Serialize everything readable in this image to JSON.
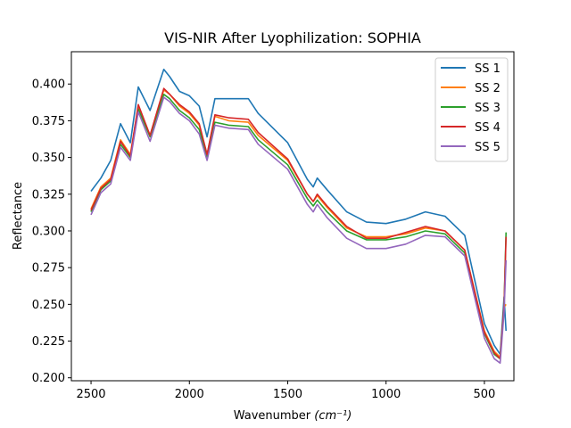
{
  "chart_data": {
    "type": "line",
    "title": "VIS-NIR After Lyophilization: SOPHIA",
    "xlabel": "Wavenumber",
    "xlabel_unit": "(cm⁻¹)",
    "ylabel": "Reflectance",
    "xlim": [
      2600,
      350
    ],
    "ylim": [
      0.198,
      0.422
    ],
    "x_ticks": [
      2500,
      2000,
      1500,
      1000,
      500
    ],
    "y_ticks": [
      0.2,
      0.225,
      0.25,
      0.275,
      0.3,
      0.325,
      0.35,
      0.375,
      0.4
    ],
    "y_tick_labels": [
      "0.200",
      "0.225",
      "0.250",
      "0.275",
      "0.300",
      "0.325",
      "0.350",
      "0.375",
      "0.400"
    ],
    "legend_position": "top-right",
    "x": [
      2500,
      2450,
      2400,
      2350,
      2300,
      2260,
      2200,
      2130,
      2100,
      2050,
      2000,
      1950,
      1910,
      1870,
      1800,
      1700,
      1650,
      1500,
      1400,
      1370,
      1350,
      1300,
      1200,
      1100,
      1000,
      900,
      800,
      700,
      600,
      500,
      450,
      420,
      400,
      390
    ],
    "series": [
      {
        "name": "SS 1",
        "color": "#1f77b4",
        "values": [
          0.327,
          0.336,
          0.348,
          0.373,
          0.36,
          0.398,
          0.382,
          0.41,
          0.405,
          0.395,
          0.392,
          0.385,
          0.364,
          0.39,
          0.39,
          0.39,
          0.38,
          0.36,
          0.335,
          0.33,
          0.336,
          0.328,
          0.313,
          0.306,
          0.305,
          0.308,
          0.313,
          0.31,
          0.297,
          0.237,
          0.222,
          0.216,
          0.255,
          0.232
        ]
      },
      {
        "name": "SS 2",
        "color": "#ff7f0e",
        "values": [
          0.315,
          0.33,
          0.336,
          0.362,
          0.352,
          0.385,
          0.365,
          0.396,
          0.393,
          0.385,
          0.38,
          0.372,
          0.352,
          0.378,
          0.375,
          0.374,
          0.365,
          0.348,
          0.325,
          0.32,
          0.324,
          0.316,
          0.302,
          0.296,
          0.296,
          0.298,
          0.302,
          0.3,
          0.287,
          0.232,
          0.218,
          0.214,
          0.248,
          0.25
        ]
      },
      {
        "name": "SS 3",
        "color": "#2ca02c",
        "values": [
          0.313,
          0.328,
          0.334,
          0.359,
          0.35,
          0.383,
          0.364,
          0.393,
          0.39,
          0.382,
          0.377,
          0.369,
          0.35,
          0.374,
          0.372,
          0.371,
          0.362,
          0.345,
          0.322,
          0.317,
          0.321,
          0.313,
          0.3,
          0.294,
          0.294,
          0.296,
          0.3,
          0.298,
          0.285,
          0.23,
          0.216,
          0.213,
          0.25,
          0.299
        ]
      },
      {
        "name": "SS 4",
        "color": "#d62728",
        "values": [
          0.314,
          0.329,
          0.335,
          0.361,
          0.351,
          0.386,
          0.365,
          0.397,
          0.393,
          0.386,
          0.381,
          0.373,
          0.352,
          0.379,
          0.377,
          0.376,
          0.367,
          0.349,
          0.325,
          0.32,
          0.325,
          0.317,
          0.303,
          0.295,
          0.295,
          0.299,
          0.303,
          0.3,
          0.287,
          0.231,
          0.217,
          0.213,
          0.249,
          0.296
        ]
      },
      {
        "name": "SS 5",
        "color": "#9467bd",
        "values": [
          0.311,
          0.326,
          0.332,
          0.357,
          0.348,
          0.381,
          0.361,
          0.391,
          0.388,
          0.38,
          0.375,
          0.366,
          0.348,
          0.372,
          0.37,
          0.369,
          0.359,
          0.342,
          0.318,
          0.313,
          0.318,
          0.309,
          0.295,
          0.288,
          0.288,
          0.291,
          0.297,
          0.296,
          0.283,
          0.227,
          0.213,
          0.21,
          0.245,
          0.28
        ]
      }
    ]
  }
}
